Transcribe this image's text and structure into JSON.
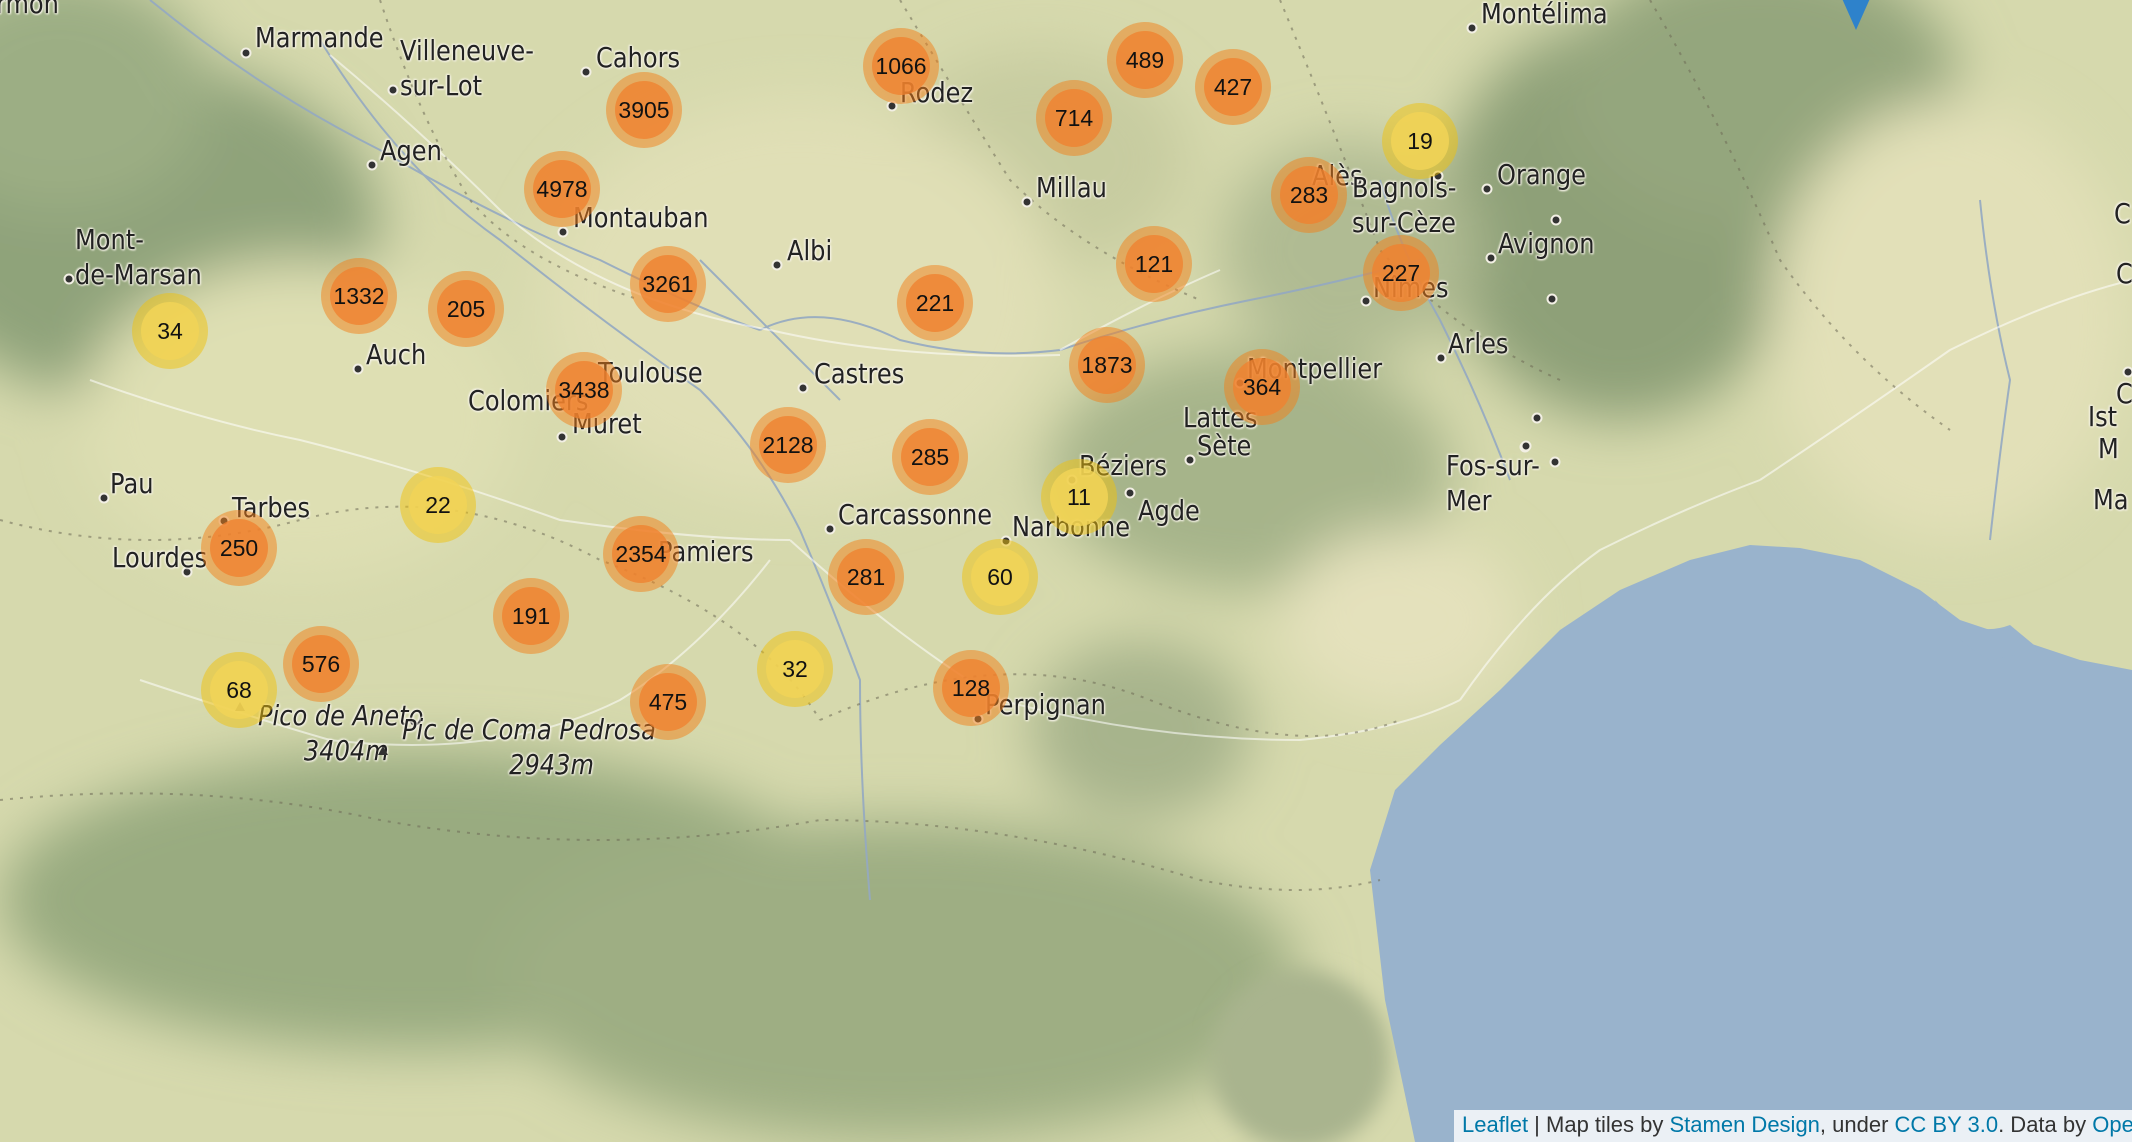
{
  "colors": {
    "sea": "#99b3cc",
    "land": "#d9dcb0",
    "mountain": "#93a57c",
    "cluster_large": "#f08030",
    "cluster_small": "#f0c20c",
    "marker": "#2e82cb"
  },
  "cities": [
    {
      "name": "Marmande",
      "label": "Marmande"
    },
    {
      "name": "Villeneuve-sur-Lot",
      "label": "Villeneuve-\nsur-Lot"
    },
    {
      "name": "Cahors",
      "label": "Cahors"
    },
    {
      "name": "Agen",
      "label": "Agen"
    },
    {
      "name": "Montauban",
      "label": "Montauban"
    },
    {
      "name": "Mont-de-Marsan",
      "label": "Mont-\nde-Marsan"
    },
    {
      "name": "Auch",
      "label": "Auch"
    },
    {
      "name": "Toulouse",
      "label": "Toulouse"
    },
    {
      "name": "Colomiers",
      "label": "Colomiers"
    },
    {
      "name": "Muret",
      "label": "Muret"
    },
    {
      "name": "Albi",
      "label": "Albi"
    },
    {
      "name": "Rodez",
      "label": "Rodez"
    },
    {
      "name": "Millau",
      "label": "Millau"
    },
    {
      "name": "Castres",
      "label": "Castres"
    },
    {
      "name": "Pau",
      "label": "Pau"
    },
    {
      "name": "Tarbes",
      "label": "Tarbes"
    },
    {
      "name": "Lourdes",
      "label": "Lourdes"
    },
    {
      "name": "Pamiers",
      "label": "Pamiers"
    },
    {
      "name": "Carcassonne",
      "label": "Carcassonne"
    },
    {
      "name": "Narbonne",
      "label": "Narbonne"
    },
    {
      "name": "Béziers",
      "label": "Béziers"
    },
    {
      "name": "Agde",
      "label": "Agde"
    },
    {
      "name": "Sète",
      "label": "Sète"
    },
    {
      "name": "Lattes",
      "label": "Lattes"
    },
    {
      "name": "Montpellier",
      "label": "Montpellier"
    },
    {
      "name": "Perpignan",
      "label": "Perpignan"
    },
    {
      "name": "Alès",
      "label": "Alès"
    },
    {
      "name": "Bagnols-sur-Cèze",
      "label": "Bagnols-\nsur-Cèze"
    },
    {
      "name": "Orange",
      "label": "Orange"
    },
    {
      "name": "Avignon",
      "label": "Avignon"
    },
    {
      "name": "Nîmes",
      "label": "Nîmes"
    },
    {
      "name": "Arles",
      "label": "Arles"
    },
    {
      "name": "Fos-sur-Mer",
      "label": "Fos-sur-\nMer"
    },
    {
      "name": "Montélimar",
      "label": "Montélima"
    }
  ],
  "extra_labels": [
    "rmon",
    "Ist",
    "M",
    "Ma",
    "C",
    "C",
    "C"
  ],
  "peaks": [
    {
      "name": "Pico de Aneto",
      "label": "Pico de Aneto\n      3404m"
    },
    {
      "name": "Pic de Coma Pedrosa",
      "label": "Pic de Coma Pedrosa\n              2943m"
    }
  ],
  "clusters": [
    {
      "count": "1066",
      "size": "large"
    },
    {
      "count": "489",
      "size": "large"
    },
    {
      "count": "427",
      "size": "large"
    },
    {
      "count": "3905",
      "size": "large"
    },
    {
      "count": "714",
      "size": "large"
    },
    {
      "count": "19",
      "size": "small"
    },
    {
      "count": "4978",
      "size": "large"
    },
    {
      "count": "283",
      "size": "large"
    },
    {
      "count": "3261",
      "size": "large"
    },
    {
      "count": "121",
      "size": "large"
    },
    {
      "count": "227",
      "size": "large"
    },
    {
      "count": "1332",
      "size": "large"
    },
    {
      "count": "205",
      "size": "large"
    },
    {
      "count": "221",
      "size": "large"
    },
    {
      "count": "34",
      "size": "small"
    },
    {
      "count": "1873",
      "size": "large"
    },
    {
      "count": "3438",
      "size": "large"
    },
    {
      "count": "364",
      "size": "large"
    },
    {
      "count": "2128",
      "size": "large"
    },
    {
      "count": "285",
      "size": "large"
    },
    {
      "count": "11",
      "size": "small"
    },
    {
      "count": "22",
      "size": "small"
    },
    {
      "count": "250",
      "size": "large"
    },
    {
      "count": "2354",
      "size": "large"
    },
    {
      "count": "281",
      "size": "large"
    },
    {
      "count": "60",
      "size": "small"
    },
    {
      "count": "191",
      "size": "large"
    },
    {
      "count": "576",
      "size": "large"
    },
    {
      "count": "32",
      "size": "small"
    },
    {
      "count": "68",
      "size": "small"
    },
    {
      "count": "475",
      "size": "large"
    },
    {
      "count": "128",
      "size": "large"
    }
  ],
  "attribution": {
    "leaflet": "Leaflet",
    "sep": " | Map tiles by ",
    "stamen": "Stamen Design",
    "under": ", under ",
    "license": "CC BY 3.0",
    "data": ". Data by ",
    "osm": "Ope"
  }
}
